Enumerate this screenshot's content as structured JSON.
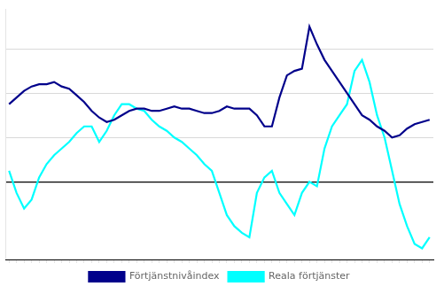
{
  "chart_data": {
    "type": "line",
    "categories": [
      null,
      null,
      null,
      null,
      null,
      null,
      null,
      null,
      null,
      null,
      null,
      null,
      null,
      null,
      null,
      null,
      null,
      null,
      null,
      null,
      null,
      null,
      null,
      null,
      null,
      null,
      null,
      null,
      null,
      null,
      null,
      null,
      null,
      null,
      null,
      null,
      null,
      null,
      null,
      null,
      null,
      null,
      null,
      null,
      null,
      null,
      null,
      null,
      null,
      null,
      null,
      null,
      null,
      null,
      null,
      null,
      null
    ],
    "series": [
      {
        "name": "Förtjänstnivåindex",
        "color": "#00008B",
        "values": [
          3.5,
          3.8,
          4.1,
          4.3,
          4.4,
          4.4,
          4.5,
          4.3,
          4.2,
          3.9,
          3.6,
          3.2,
          2.9,
          2.7,
          2.8,
          3.0,
          3.2,
          3.3,
          3.3,
          3.2,
          3.2,
          3.3,
          3.4,
          3.3,
          3.3,
          3.2,
          3.1,
          3.1,
          3.2,
          3.4,
          3.3,
          3.3,
          3.3,
          3.0,
          2.5,
          2.5,
          3.8,
          4.8,
          5.0,
          5.1,
          7.0,
          6.2,
          5.5,
          5.0,
          4.5,
          4.0,
          3.5,
          3.0,
          2.8,
          2.5,
          2.3,
          2.0,
          2.1,
          2.4,
          2.6,
          2.7,
          2.8
        ]
      },
      {
        "name": "Reala förtjänster",
        "color": "#00FFFF",
        "values": [
          0.5,
          -0.5,
          -1.2,
          -0.8,
          0.2,
          0.8,
          1.2,
          1.5,
          1.8,
          2.2,
          2.5,
          2.5,
          1.8,
          2.3,
          3.0,
          3.5,
          3.5,
          3.3,
          3.2,
          2.8,
          2.5,
          2.3,
          2.0,
          1.8,
          1.5,
          1.2,
          0.8,
          0.5,
          -0.5,
          -1.5,
          -2.0,
          -2.3,
          -2.5,
          -0.5,
          0.2,
          0.5,
          -0.5,
          -1.0,
          -1.5,
          -0.5,
          0.0,
          -0.2,
          1.5,
          2.5,
          3.0,
          3.5,
          5.0,
          5.5,
          4.5,
          3.0,
          2.0,
          0.5,
          -1.0,
          -2.0,
          -2.8,
          -3.0,
          -2.5
        ]
      }
    ],
    "ylim": [
      -3.5,
      7.8
    ],
    "yticks": [
      0,
      2,
      4,
      6
    ],
    "grid": true,
    "tick_labels": false,
    "legend": "bottom"
  }
}
